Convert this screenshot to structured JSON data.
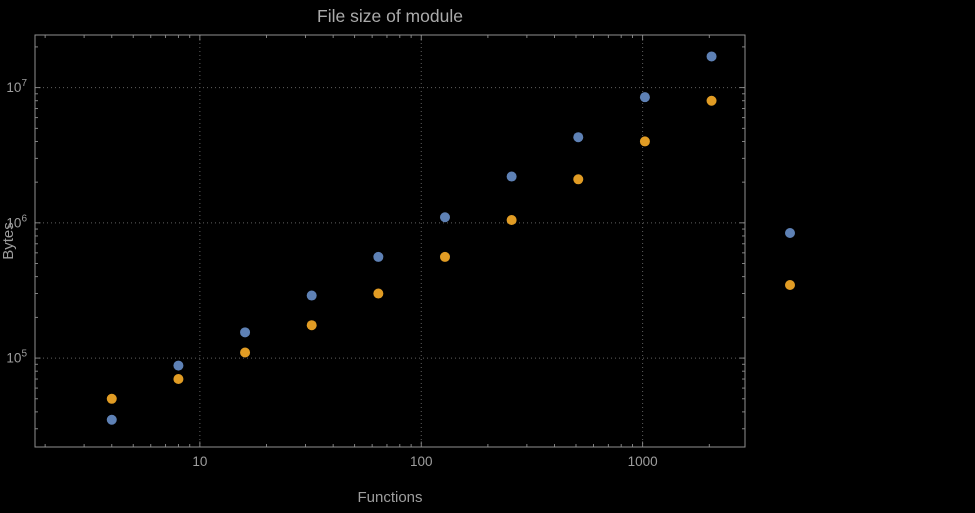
{
  "chart_data": {
    "type": "scatter",
    "title": "File size of module",
    "xlabel": "Functions",
    "ylabel": "Bytes",
    "x_scale": "log",
    "y_scale": "log",
    "x": [
      4,
      8,
      16,
      32,
      64,
      128,
      256,
      512,
      1024,
      2048
    ],
    "series": [
      {
        "name": "series-1",
        "color": "#5E81B5",
        "values": [
          35000,
          88000,
          155000,
          290000,
          560000,
          1100000,
          2200000,
          4300000,
          8500000,
          17000000
        ]
      },
      {
        "name": "series-2",
        "color": "#E19C24",
        "values": [
          50000,
          70000,
          110000,
          175000,
          300000,
          560000,
          1050000,
          2100000,
          4000000,
          8000000
        ]
      }
    ],
    "x_ticks": [
      10,
      100,
      1000
    ],
    "x_tick_labels": [
      "10",
      "100",
      "1000"
    ],
    "y_ticks": [
      100000,
      1000000,
      10000000
    ],
    "y_tick_labels": [
      {
        "base": "10",
        "exp": "5"
      },
      {
        "base": "10",
        "exp": "6"
      },
      {
        "base": "10",
        "exp": "7"
      }
    ],
    "xlim": [
      1.8,
      2900
    ],
    "ylim": [
      22000,
      24500000
    ],
    "grid": true,
    "legend_position": "right-outside",
    "legend_markers": [
      {
        "series": "series-1",
        "color": "#5E81B5"
      },
      {
        "series": "series-2",
        "color": "#E19C24"
      }
    ]
  },
  "styles": {
    "background": "#000000",
    "frame_color": "#8f8f8f",
    "grid_color": "#5f5f5f",
    "tick_color": "#8f8f8f",
    "text_color": "#9e9e9e",
    "title_color": "#ababab"
  }
}
